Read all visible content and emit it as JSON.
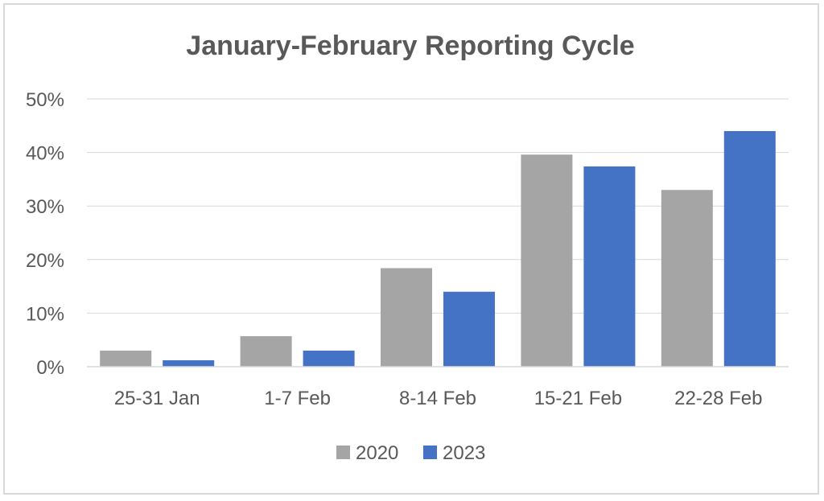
{
  "chart_data": {
    "type": "bar",
    "title": "January-February Reporting Cycle",
    "xlabel": "",
    "ylabel": "",
    "categories": [
      "25-31 Jan",
      "1-7 Feb",
      "8-14 Feb",
      "15-21 Feb",
      "22-28 Feb"
    ],
    "series": [
      {
        "name": "2020",
        "values": [
          3.0,
          5.7,
          18.4,
          39.6,
          33.0
        ],
        "color": "#a5a5a5"
      },
      {
        "name": "2023",
        "values": [
          1.2,
          3.0,
          14.0,
          37.4,
          44.0
        ],
        "color": "#4472c4"
      }
    ],
    "ylim": [
      0,
      50
    ],
    "yticks": [
      "0%",
      "10%",
      "20%",
      "30%",
      "40%",
      "50%"
    ],
    "grid": true,
    "legend": "bottom",
    "gridline_color": "#d9d9d9",
    "text_color": "#595959"
  }
}
